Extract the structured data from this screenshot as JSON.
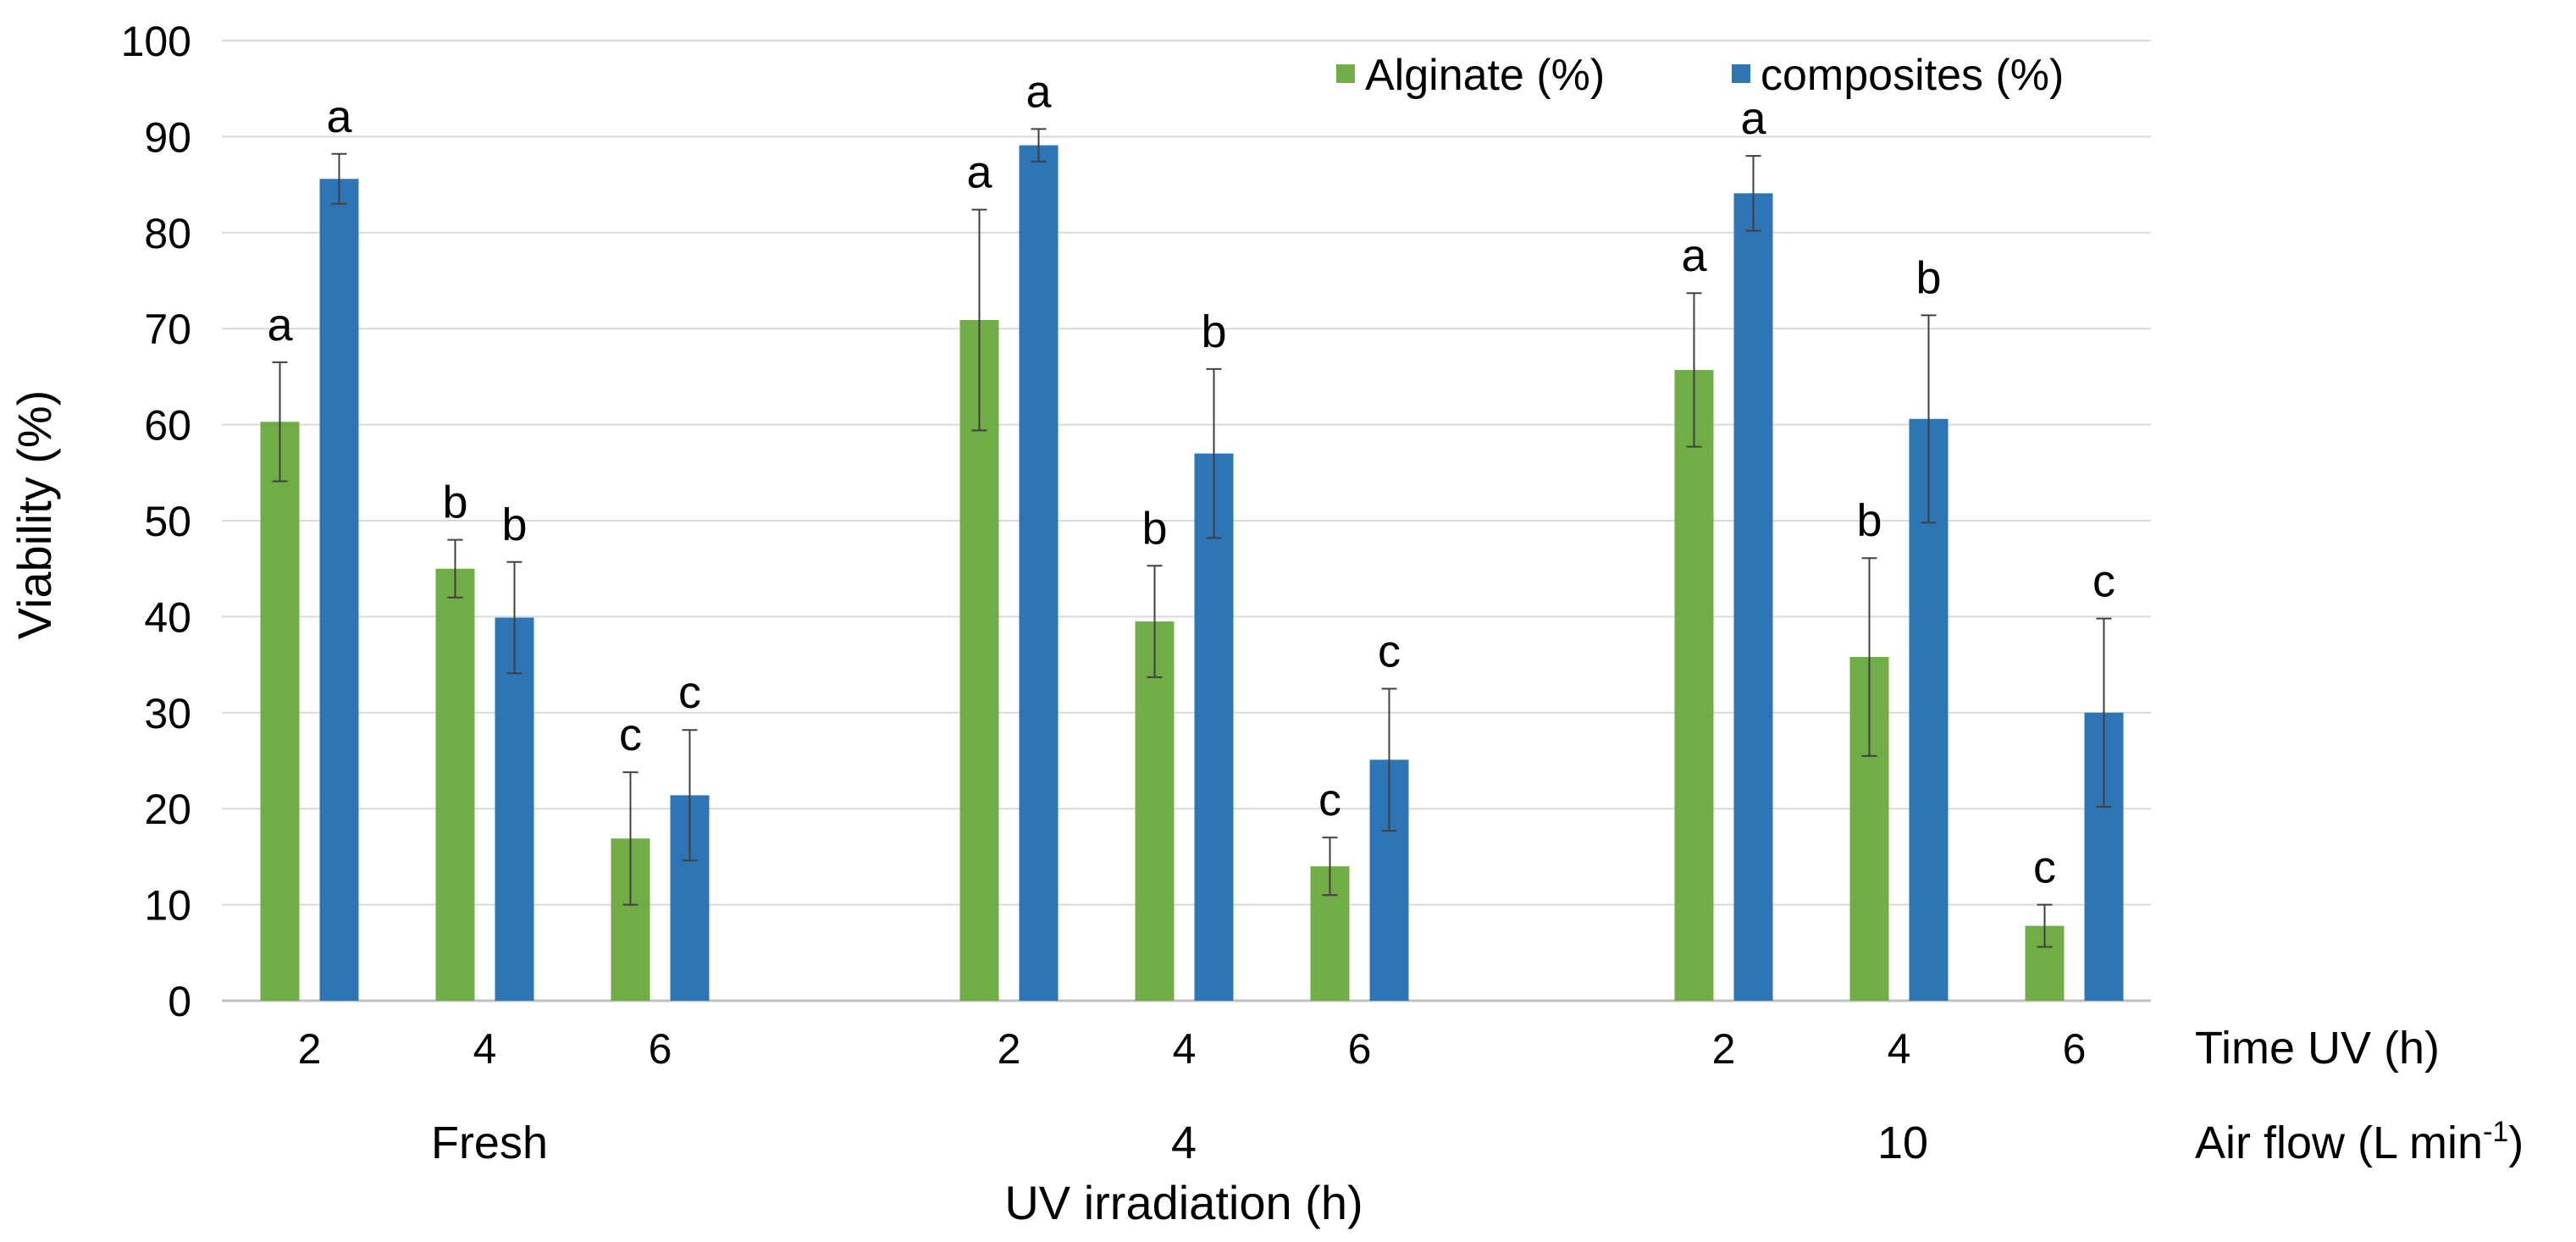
{
  "chart_data": {
    "type": "bar",
    "title": "",
    "ylabel": "Viability (%)",
    "xlabel": "UV irradiation (h)",
    "ylim": [
      0,
      100
    ],
    "yticks": [
      0,
      10,
      20,
      30,
      40,
      50,
      60,
      70,
      80,
      90,
      100
    ],
    "grid": true,
    "legend_position": "top-right",
    "groups": [
      {
        "label": "Fresh",
        "categories": [
          "2",
          "4",
          "6"
        ]
      },
      {
        "label": "4",
        "categories": [
          "2",
          "4",
          "6"
        ]
      },
      {
        "label": "10",
        "categories": [
          "2",
          "4",
          "6"
        ]
      }
    ],
    "row_labels": {
      "time_uv": "Time UV (h)",
      "air_flow": "Air flow (L min",
      "air_flow_sup": "-1",
      "air_flow_close": ")"
    },
    "series": [
      {
        "name": "Alginate (%)",
        "color": "#70ad47",
        "values": [
          60.3,
          45.0,
          16.9,
          70.9,
          39.5,
          14.0,
          65.7,
          35.8,
          7.8
        ],
        "errors": [
          6.2,
          3.0,
          6.9,
          11.5,
          5.8,
          3.0,
          8.0,
          10.3,
          2.2
        ],
        "sig": [
          "a",
          "b",
          "c",
          "a",
          "b",
          "c",
          "a",
          "b",
          "c"
        ]
      },
      {
        "name": "composites (%)",
        "color": "#2e75b6",
        "values": [
          85.6,
          39.9,
          21.4,
          89.1,
          57.0,
          25.1,
          84.1,
          60.6,
          30.0
        ],
        "errors": [
          2.6,
          5.8,
          6.8,
          1.7,
          8.8,
          7.4,
          3.9,
          10.8,
          9.8
        ],
        "sig": [
          "a",
          "b",
          "c",
          "a",
          "b",
          "c",
          "a",
          "b",
          "c"
        ]
      }
    ]
  }
}
